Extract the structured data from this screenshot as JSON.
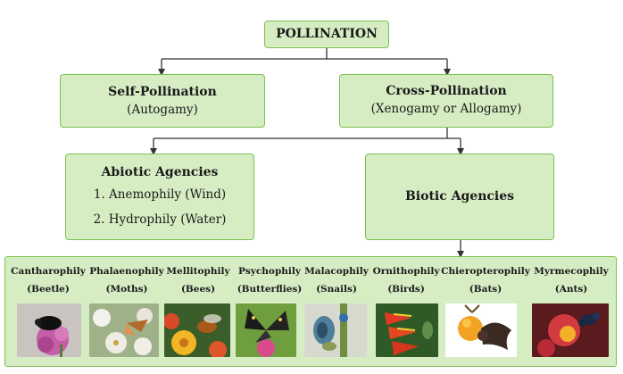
{
  "root": {
    "title": "POLLINATION"
  },
  "self": {
    "title": "Self-Pollination",
    "subtitle": "(Autogamy)"
  },
  "cross": {
    "title": "Cross-Pollination",
    "subtitle": "(Xenogamy or Allogamy)"
  },
  "abiotic": {
    "title": "Abiotic Agencies",
    "items": [
      "1. Anemophily (Wind)",
      "2. Hydrophily (Water)"
    ]
  },
  "biotic": {
    "title": "Biotic Agencies"
  },
  "agencies": [
    {
      "name": "Cantharophily",
      "agent": "(Beetle)"
    },
    {
      "name": "Phalaenophily",
      "agent": "(Moths)"
    },
    {
      "name": "Mellitophily",
      "agent": "(Bees)"
    },
    {
      "name": "Psychophily",
      "agent": "(Butterflies)"
    },
    {
      "name": "Malacophily",
      "agent": "(Snails)"
    },
    {
      "name": "Ornithophily",
      "agent": "(Birds)"
    },
    {
      "name": "Chieropterophily",
      "agent": "(Bats)"
    },
    {
      "name": "Myrmecophily",
      "agent": "(Ants)"
    }
  ],
  "colors": {
    "box_fill": "#d6edc4",
    "box_border": "#7cc04f",
    "connector": "#333333"
  }
}
